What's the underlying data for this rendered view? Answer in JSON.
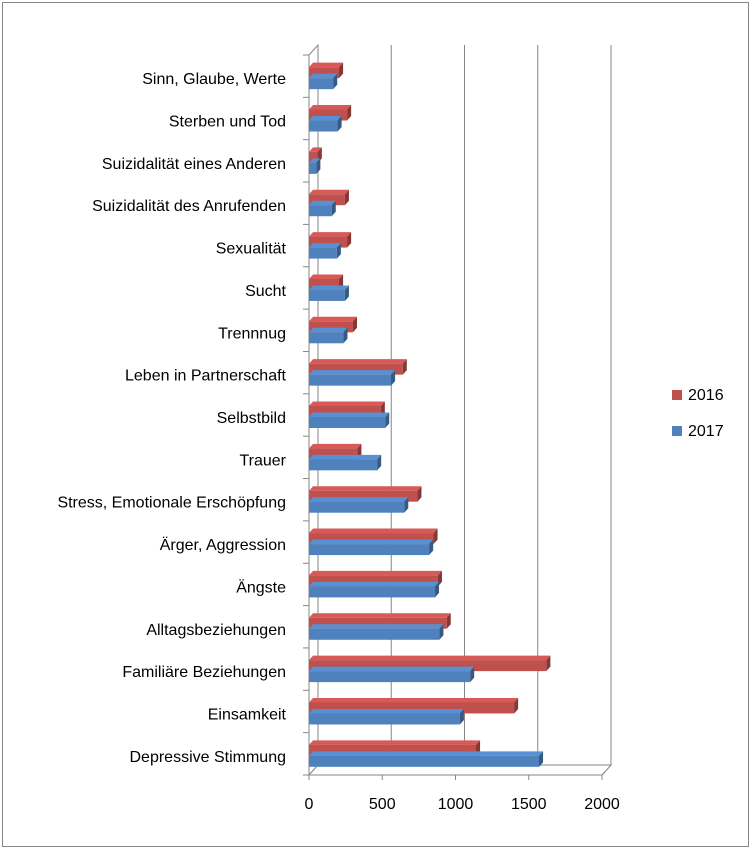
{
  "chart_data": {
    "type": "bar",
    "orientation": "horizontal",
    "style": "3d-clustered",
    "categories": [
      "Sinn, Glaube, Werte",
      "Sterben und Tod",
      "Suizidalität eines Anderen",
      "Suizidalität des Anrufenden",
      "Sexualität",
      "Sucht",
      "Trennnug",
      "Leben in Partnerschaft",
      "Selbstbild",
      "Trauer",
      "Stress, Emotionale Erschöpfung",
      "Ärger, Aggression",
      "Ängste",
      "Alltagsbeziehungen",
      "Familiäre Beziehungen",
      "Einsamkeit",
      "Depressive Stimmung"
    ],
    "series": [
      {
        "name": "2016",
        "color": "#C0504D",
        "values": [
          205,
          260,
          60,
          245,
          260,
          205,
          300,
          640,
          490,
          330,
          740,
          850,
          880,
          940,
          1620,
          1400,
          1140
        ]
      },
      {
        "name": "2017",
        "color": "#4F81BD",
        "values": [
          165,
          195,
          50,
          155,
          190,
          245,
          235,
          560,
          520,
          465,
          650,
          820,
          860,
          890,
          1100,
          1030,
          1570
        ]
      }
    ],
    "xlim": [
      0,
      2000
    ],
    "xticks": [
      0,
      500,
      1000,
      1500,
      2000
    ],
    "grid": true,
    "legend_position": "right",
    "title": "",
    "xlabel": "",
    "ylabel": ""
  }
}
